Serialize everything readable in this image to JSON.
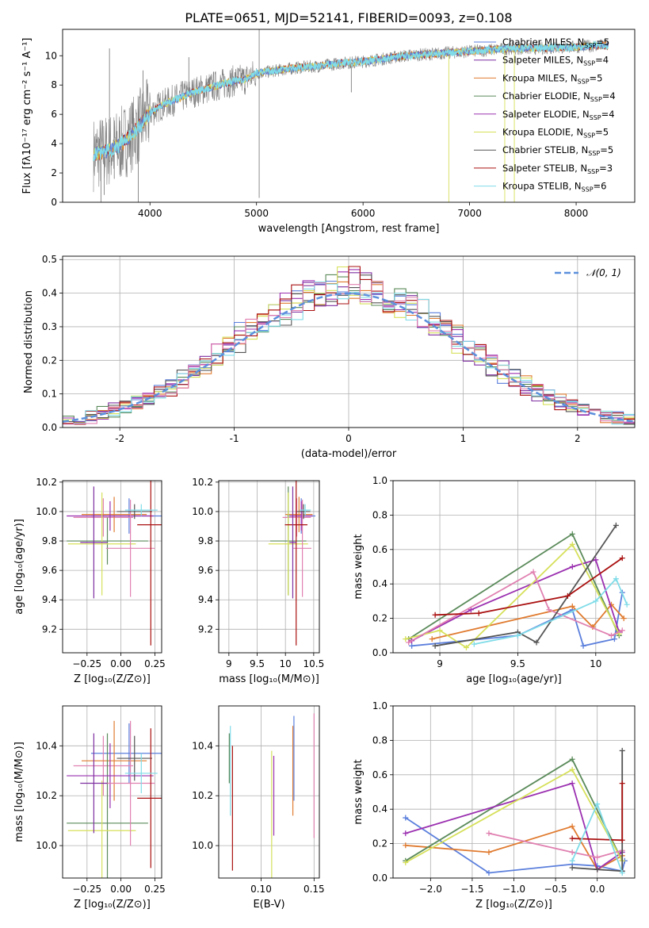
{
  "title": "PLATE=0651, MJD=52141, FIBERID=0093, z=0.108",
  "colors": {
    "chabrier_miles": "#5b7fdc",
    "salpeter_miles": "#7e2fa0",
    "kroupa_miles": "#e07b30",
    "chabrier_elodie": "#5a8a5a",
    "salpeter_elodie": "#9b30b0",
    "kroupa_elodie": "#d6e05a",
    "chabrier_stelib": "#555555",
    "salpeter_stelib": "#aa1111",
    "kroupa_stelib": "#80dce8",
    "pink": "#e080b0",
    "data_gray": "#808080",
    "normal_curve": "#5b8fdc"
  },
  "chart_data": [
    {
      "id": "spectrum",
      "type": "line",
      "title": "PLATE=0651, MJD=52141, FIBERID=0093, z=0.108",
      "xlabel": "wavelength [Angstrom, rest frame]",
      "ylabel": "Flux [fλ10⁻¹⁷ erg cm⁻² s⁻¹ A⁻¹]",
      "xlim": [
        3180,
        8550
      ],
      "ylim": [
        0,
        11.8
      ],
      "xticks": [
        4000,
        5000,
        6000,
        7000,
        8000
      ],
      "yticks": [
        0,
        2,
        4,
        6,
        8,
        10
      ],
      "grid": false,
      "legend_position": "top-right",
      "legend": [
        {
          "label": "Chabrier MILES, N",
          "sub": "SSP",
          "tail": "=5",
          "color_key": "chabrier_miles"
        },
        {
          "label": "Salpeter MILES, N",
          "sub": "SSP",
          "tail": "=4",
          "color_key": "salpeter_miles"
        },
        {
          "label": "Kroupa MILES, N",
          "sub": "SSP",
          "tail": "=5",
          "color_key": "kroupa_miles"
        },
        {
          "label": "Chabrier ELODIE, N",
          "sub": "SSP",
          "tail": "=4",
          "color_key": "chabrier_elodie"
        },
        {
          "label": "Salpeter ELODIE, N",
          "sub": "SSP",
          "tail": "=4",
          "color_key": "salpeter_elodie"
        },
        {
          "label": "Kroupa ELODIE, N",
          "sub": "SSP",
          "tail": "=5",
          "color_key": "kroupa_elodie"
        },
        {
          "label": "Chabrier STELIB, N",
          "sub": "SSP",
          "tail": "=5",
          "color_key": "chabrier_stelib"
        },
        {
          "label": "Salpeter STELIB, N",
          "sub": "SSP",
          "tail": "=3",
          "color_key": "salpeter_stelib"
        },
        {
          "label": "Kroupa STELIB, N",
          "sub": "SSP",
          "tail": "=6",
          "color_key": "kroupa_stelib"
        }
      ],
      "continuum": {
        "x": [
          3470,
          3600,
          3700,
          3800,
          3900,
          4000,
          4100,
          4200,
          4300,
          4400,
          4500,
          4600,
          4700,
          4800,
          4900,
          5000,
          5200,
          5400,
          5600,
          5800,
          6000,
          6200,
          6400,
          6600,
          6800,
          7000,
          7200,
          7400,
          7600,
          7800,
          8000,
          8200,
          8300
        ],
        "y": [
          3.3,
          3.5,
          3.8,
          4.4,
          5.2,
          6.1,
          6.6,
          6.9,
          7.2,
          7.5,
          7.7,
          7.9,
          8.1,
          8.3,
          8.4,
          8.8,
          9.0,
          9.2,
          9.3,
          9.5,
          9.6,
          9.8,
          10.0,
          10.1,
          10.2,
          10.3,
          10.4,
          10.5,
          10.5,
          10.55,
          10.6,
          10.7,
          10.7
        ]
      },
      "spikes": [
        {
          "x": 3540,
          "y": 0
        },
        {
          "x": 3570,
          "y": 0.5
        },
        {
          "x": 3620,
          "y": 10.5
        },
        {
          "x": 3665,
          "y": 1.6
        },
        {
          "x": 3890,
          "y": 0.0
        },
        {
          "x": 3935,
          "y": 9.0
        },
        {
          "x": 4365,
          "y": 9.9
        },
        {
          "x": 5025,
          "y": 0.3
        },
        {
          "x": 5025,
          "y": 11.8
        },
        {
          "x": 5890,
          "y": 7.5
        },
        {
          "x": 6805,
          "y": 0.0
        },
        {
          "x": 7330,
          "y": 0.0
        },
        {
          "x": 7420,
          "y": 0.0
        }
      ]
    },
    {
      "id": "residuals",
      "type": "histogram",
      "xlabel": "(data-model)/error",
      "ylabel": "Normed distribution",
      "xlim": [
        -2.5,
        2.5
      ],
      "ylim": [
        0,
        0.51
      ],
      "xticks": [
        -2,
        -1,
        0,
        1,
        2
      ],
      "yticks": [
        0.0,
        0.1,
        0.2,
        0.3,
        0.4,
        0.5
      ],
      "grid": true,
      "legend_position": "top-right",
      "legend": [
        {
          "label": "𝒩(0, 1)",
          "color_key": "normal_curve"
        }
      ],
      "bin_width": 0.1,
      "bin_start": -2.5,
      "reference": {
        "mean": 0,
        "sigma": 1
      }
    },
    {
      "id": "age_vs_Z",
      "type": "errorbar",
      "xlabel": "Z [log₁₀(Z/Z⊙)]",
      "ylabel": "age  [log₁₀(age/yr)]",
      "xlim": [
        -0.43,
        0.3
      ],
      "ylim": [
        9.04,
        10.21
      ],
      "xticks": [
        -0.25,
        0.0,
        0.25
      ],
      "xticklabels": [
        "−0.25",
        "0.00",
        "0.25"
      ],
      "yticks": [
        9.2,
        9.4,
        9.6,
        9.8,
        10.0,
        10.2
      ],
      "grid": true,
      "points": [
        {
          "x": 0.06,
          "xerr": 0.28,
          "y": 9.97,
          "yerr": 0.12,
          "color_key": "chabrier_miles"
        },
        {
          "x": -0.13,
          "xerr": 0.22,
          "y": 9.96,
          "yerr": 0.13,
          "color_key": "pink"
        },
        {
          "x": -0.05,
          "xerr": 0.24,
          "y": 9.98,
          "yerr": 0.12,
          "color_key": "kroupa_miles"
        },
        {
          "x": -0.1,
          "xerr": 0.3,
          "y": 9.8,
          "yerr": 0.16,
          "color_key": "chabrier_elodie"
        },
        {
          "x": -0.08,
          "xerr": 0.32,
          "y": 9.97,
          "yerr": 0.1,
          "color_key": "salpeter_elodie"
        },
        {
          "x": -0.14,
          "xerr": 0.25,
          "y": 9.78,
          "yerr": 0.35,
          "color_key": "kroupa_elodie"
        },
        {
          "x": 0.07,
          "xerr": 0.18,
          "y": 9.75,
          "yerr": 0.33,
          "color_key": "pink"
        },
        {
          "x": 0.1,
          "xerr": 0.13,
          "y": 10.0,
          "yerr": 0.05,
          "color_key": "chabrier_stelib"
        },
        {
          "x": 0.22,
          "xerr": 0.1,
          "y": 9.91,
          "yerr": 0.82,
          "color_key": "salpeter_stelib"
        },
        {
          "x": 0.15,
          "xerr": 0.12,
          "y": 10.01,
          "yerr": 0.04,
          "color_key": "kroupa_stelib"
        },
        {
          "x": -0.2,
          "xerr": 0.1,
          "y": 9.79,
          "yerr": 0.38,
          "color_key": "salpeter_miles"
        }
      ]
    },
    {
      "id": "age_vs_mass",
      "type": "errorbar",
      "xlabel": "mass [log₁₀(M/M⊙)]",
      "ylabel": "",
      "xlim": [
        8.82,
        10.6
      ],
      "ylim": [
        9.04,
        10.21
      ],
      "xticks": [
        9.0,
        9.5,
        10.0,
        10.5
      ],
      "yticks": [
        9.2,
        9.4,
        9.6,
        9.8,
        10.0,
        10.2
      ],
      "grid": true,
      "points": [
        {
          "x": 10.28,
          "xerr": 0.25,
          "y": 9.97,
          "yerr": 0.12,
          "color_key": "chabrier_miles"
        },
        {
          "x": 10.2,
          "xerr": 0.25,
          "y": 9.96,
          "yerr": 0.13,
          "color_key": "pink"
        },
        {
          "x": 10.24,
          "xerr": 0.24,
          "y": 9.98,
          "yerr": 0.12,
          "color_key": "kroupa_miles"
        },
        {
          "x": 10.05,
          "xerr": 0.32,
          "y": 9.8,
          "yerr": 0.37,
          "color_key": "chabrier_elodie"
        },
        {
          "x": 10.28,
          "xerr": 0.2,
          "y": 9.97,
          "yerr": 0.1,
          "color_key": "salpeter_elodie"
        },
        {
          "x": 10.05,
          "xerr": 0.35,
          "y": 9.78,
          "yerr": 0.35,
          "color_key": "kroupa_elodie"
        },
        {
          "x": 10.3,
          "xerr": 0.16,
          "y": 9.75,
          "yerr": 0.33,
          "color_key": "pink"
        },
        {
          "x": 10.32,
          "xerr": 0.12,
          "y": 10.0,
          "yerr": 0.05,
          "color_key": "chabrier_stelib"
        },
        {
          "x": 10.19,
          "xerr": 0.2,
          "y": 9.91,
          "yerr": 0.82,
          "color_key": "salpeter_stelib"
        },
        {
          "x": 10.35,
          "xerr": 0.1,
          "y": 10.01,
          "yerr": 0.04,
          "color_key": "kroupa_stelib"
        },
        {
          "x": 10.13,
          "xerr": 0.06,
          "y": 9.79,
          "yerr": 0.38,
          "color_key": "salpeter_miles"
        }
      ]
    },
    {
      "id": "weight_vs_age",
      "type": "line",
      "xlabel": "age  [log₁₀(age/yr)]",
      "ylabel": "mass weight",
      "xlim": [
        8.7,
        10.25
      ],
      "ylim": [
        0,
        1.0
      ],
      "xticks": [
        9.0,
        9.5,
        10.0
      ],
      "yticks": [
        0.0,
        0.2,
        0.4,
        0.6,
        0.8,
        1.0
      ],
      "grid": true,
      "series": [
        {
          "color_key": "chabrier_miles",
          "x": [
            8.82,
            9.5,
            9.85,
            9.92,
            10.12,
            10.17
          ],
          "y": [
            0.04,
            0.1,
            0.25,
            0.04,
            0.08,
            0.35
          ]
        },
        {
          "color_key": "kroupa_miles",
          "x": [
            8.95,
            9.85,
            9.98,
            10.1,
            10.18
          ],
          "y": [
            0.08,
            0.27,
            0.15,
            0.28,
            0.2
          ]
        },
        {
          "color_key": "chabrier_elodie",
          "x": [
            8.8,
            9.85,
            10.15
          ],
          "y": [
            0.08,
            0.69,
            0.1
          ]
        },
        {
          "color_key": "salpeter_elodie",
          "x": [
            8.82,
            9.2,
            9.85,
            10.0,
            10.15
          ],
          "y": [
            0.07,
            0.25,
            0.5,
            0.54,
            0.12
          ]
        },
        {
          "color_key": "kroupa_elodie",
          "x": [
            8.78,
            9.0,
            9.17,
            9.85,
            10.15
          ],
          "y": [
            0.08,
            0.13,
            0.03,
            0.63,
            0.11
          ]
        },
        {
          "color_key": "pink",
          "x": [
            8.8,
            9.6,
            9.7,
            10.1,
            10.17
          ],
          "y": [
            0.06,
            0.47,
            0.25,
            0.1,
            0.13
          ]
        },
        {
          "color_key": "chabrier_stelib",
          "x": [
            8.97,
            9.5,
            9.62,
            10.13
          ],
          "y": [
            0.04,
            0.12,
            0.06,
            0.74
          ]
        },
        {
          "color_key": "salpeter_stelib",
          "x": [
            8.97,
            9.25,
            9.82,
            10.17
          ],
          "y": [
            0.22,
            0.23,
            0.33,
            0.55
          ]
        },
        {
          "color_key": "kroupa_stelib",
          "x": [
            9.22,
            9.5,
            10.0,
            10.13,
            10.2
          ],
          "y": [
            0.05,
            0.1,
            0.3,
            0.43,
            0.28
          ]
        }
      ]
    },
    {
      "id": "mass_vs_Z",
      "type": "errorbar",
      "xlabel": "Z [log₁₀(Z/Z⊙)]",
      "ylabel": "mass [log₁₀(M/M⊙)]",
      "xlim": [
        -0.43,
        0.3
      ],
      "ylim": [
        9.87,
        10.56
      ],
      "xticks": [
        -0.25,
        0.0,
        0.25
      ],
      "xticklabels": [
        "−0.25",
        "0.00",
        "0.25"
      ],
      "yticks": [
        10.0,
        10.2,
        10.4
      ],
      "grid": true,
      "points": [
        {
          "x": 0.06,
          "xerr": 0.28,
          "y": 10.37,
          "yerr": 0.12,
          "color_key": "chabrier_miles"
        },
        {
          "x": -0.13,
          "xerr": 0.22,
          "y": 10.32,
          "yerr": 0.12,
          "color_key": "pink"
        },
        {
          "x": -0.05,
          "xerr": 0.24,
          "y": 10.34,
          "yerr": 0.16,
          "color_key": "kroupa_miles"
        },
        {
          "x": -0.1,
          "xerr": 0.3,
          "y": 10.09,
          "yerr": 0.36,
          "color_key": "chabrier_elodie"
        },
        {
          "x": -0.08,
          "xerr": 0.32,
          "y": 10.28,
          "yerr": 0.13,
          "color_key": "salpeter_elodie"
        },
        {
          "x": -0.14,
          "xerr": 0.25,
          "y": 10.06,
          "yerr": 0.2,
          "color_key": "kroupa_elodie"
        },
        {
          "x": 0.07,
          "xerr": 0.18,
          "y": 10.25,
          "yerr": 0.25,
          "color_key": "pink"
        },
        {
          "x": 0.1,
          "xerr": 0.13,
          "y": 10.35,
          "yerr": 0.09,
          "color_key": "chabrier_stelib"
        },
        {
          "x": 0.22,
          "xerr": 0.1,
          "y": 10.19,
          "yerr": 0.28,
          "color_key": "salpeter_stelib"
        },
        {
          "x": 0.15,
          "xerr": 0.12,
          "y": 10.29,
          "yerr": 0.08,
          "color_key": "kroupa_stelib"
        },
        {
          "x": -0.2,
          "xerr": 0.1,
          "y": 10.25,
          "yerr": 0.2,
          "color_key": "salpeter_miles"
        }
      ]
    },
    {
      "id": "mass_vs_ebv",
      "type": "errorbar",
      "xlabel": "E(B-V)",
      "ylabel": "",
      "xlim": [
        0.06,
        0.155
      ],
      "ylim": [
        9.87,
        10.56
      ],
      "xticks": [
        0.1,
        0.15
      ],
      "xticklabels": [
        "0.10",
        "0.15"
      ],
      "yticks": [
        10.0,
        10.2,
        10.4
      ],
      "grid": true,
      "points": [
        {
          "x": 0.07,
          "y": 10.35,
          "yerr": 0.1,
          "color_key": "chabrier_elodie"
        },
        {
          "x": 0.071,
          "y": 10.3,
          "yerr": 0.18,
          "color_key": "kroupa_stelib"
        },
        {
          "x": 0.073,
          "y": 10.15,
          "yerr": 0.25,
          "color_key": "salpeter_stelib"
        },
        {
          "x": 0.11,
          "y": 10.1,
          "yerr": 0.28,
          "color_key": "kroupa_elodie"
        },
        {
          "x": 0.112,
          "y": 10.2,
          "yerr": 0.16,
          "color_key": "salpeter_elodie"
        },
        {
          "x": 0.13,
          "y": 10.3,
          "yerr": 0.18,
          "color_key": "kroupa_miles"
        },
        {
          "x": 0.131,
          "y": 10.35,
          "yerr": 0.17,
          "color_key": "chabrier_miles"
        },
        {
          "x": 0.15,
          "y": 10.28,
          "yerr": 0.25,
          "color_key": "pink"
        }
      ]
    },
    {
      "id": "weight_vs_Z",
      "type": "line",
      "xlabel": "Z [log₁₀(Z/Z⊙)]",
      "ylabel": "mass weight",
      "xlim": [
        -2.45,
        0.45
      ],
      "ylim": [
        0,
        1.0
      ],
      "xticks": [
        -2.0,
        -1.5,
        -1.0,
        -0.5,
        0.0
      ],
      "xticklabels": [
        "−2.0",
        "−1.5",
        "−1.0",
        "−0.5",
        "0.0"
      ],
      "yticks": [
        0.0,
        0.2,
        0.4,
        0.6,
        0.8,
        1.0
      ],
      "grid": true,
      "series": [
        {
          "color_key": "chabrier_miles",
          "x": [
            -2.3,
            -1.3,
            -0.3,
            0.0,
            0.3,
            0.33
          ],
          "y": [
            0.35,
            0.03,
            0.08,
            0.07,
            0.04,
            0.1
          ]
        },
        {
          "color_key": "kroupa_miles",
          "x": [
            -2.3,
            -1.3,
            -0.3,
            0.0,
            0.3
          ],
          "y": [
            0.19,
            0.15,
            0.3,
            0.05,
            0.13
          ]
        },
        {
          "color_key": "chabrier_elodie",
          "x": [
            -2.3,
            -0.3,
            0.3
          ],
          "y": [
            0.1,
            0.69,
            0.1
          ]
        },
        {
          "color_key": "salpeter_elodie",
          "x": [
            -2.3,
            -0.3,
            0.0,
            0.3
          ],
          "y": [
            0.26,
            0.55,
            0.05,
            0.15
          ]
        },
        {
          "color_key": "kroupa_elodie",
          "x": [
            -2.3,
            -0.3,
            0.3
          ],
          "y": [
            0.09,
            0.63,
            0.1
          ]
        },
        {
          "color_key": "pink",
          "x": [
            -1.3,
            -0.3,
            0.0,
            0.3
          ],
          "y": [
            0.26,
            0.15,
            0.12,
            0.16
          ]
        },
        {
          "color_key": "chabrier_stelib",
          "x": [
            -0.3,
            0.0,
            0.3,
            0.3
          ],
          "y": [
            0.06,
            0.05,
            0.04,
            0.74
          ]
        },
        {
          "color_key": "salpeter_stelib",
          "x": [
            -0.3,
            0.3,
            0.3
          ],
          "y": [
            0.23,
            0.22,
            0.55
          ]
        },
        {
          "color_key": "kroupa_stelib",
          "x": [
            -0.3,
            0.0,
            0.3
          ],
          "y": [
            0.1,
            0.43,
            0.03
          ]
        }
      ]
    }
  ]
}
